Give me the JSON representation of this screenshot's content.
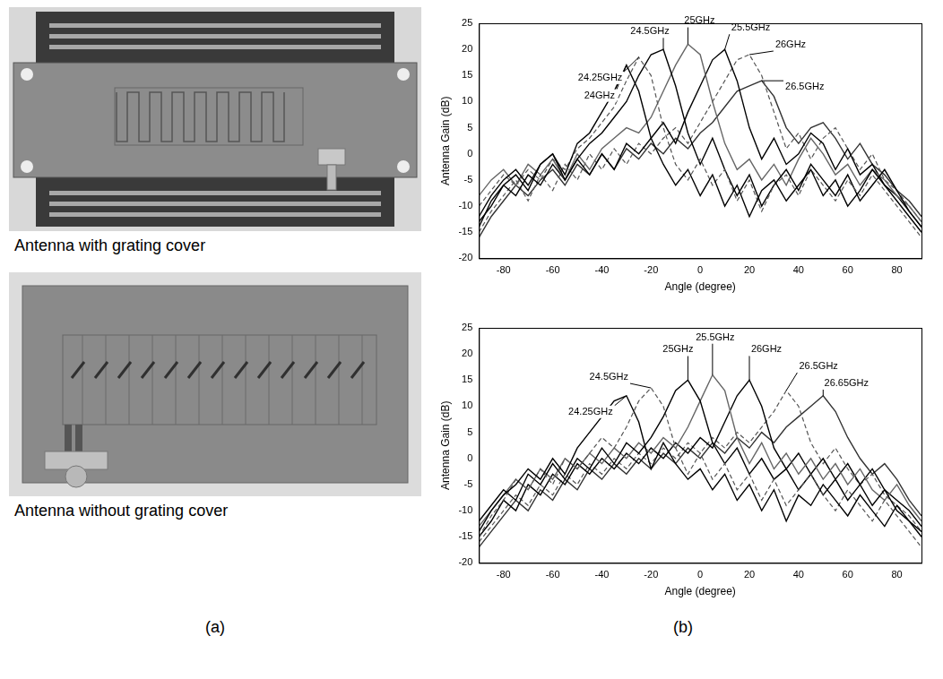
{
  "chart_data": [
    {
      "type": "line",
      "x_label": "Angle (degree)",
      "y_label": "Antenna Gain (dB)",
      "x": [
        -90,
        -85,
        -80,
        -75,
        -70,
        -65,
        -60,
        -55,
        -50,
        -45,
        -40,
        -35,
        -30,
        -25,
        -20,
        -15,
        -10,
        -5,
        0,
        5,
        10,
        15,
        20,
        25,
        30,
        35,
        40,
        45,
        50,
        55,
        60,
        65,
        70,
        75,
        80,
        85,
        90
      ],
      "xlim": [
        -90,
        90
      ],
      "xticks": [
        -80,
        -60,
        -40,
        -20,
        0,
        20,
        40,
        60,
        80
      ],
      "ylim": [
        -20,
        25
      ],
      "yticks": [
        -20,
        -15,
        -10,
        -5,
        0,
        5,
        10,
        15,
        20,
        25
      ],
      "grid": false,
      "series": [
        {
          "name": "24GHz",
          "color": "#000000",
          "line_style": "solid",
          "values": [
            -12,
            -8,
            -5,
            -3,
            -6,
            -2,
            0,
            -4,
            2,
            4,
            8,
            12,
            17,
            12,
            3,
            -2,
            -6,
            -3,
            -8,
            -4,
            -10,
            -6,
            -12,
            -7,
            -5,
            -9,
            -6,
            -3,
            -8,
            -5,
            -10,
            -7,
            -3,
            -6,
            -9,
            -12,
            -15
          ]
        },
        {
          "name": "24.25GHz",
          "color": "#555555",
          "line_style": "dashed",
          "values": [
            -10,
            -7,
            -4,
            -6,
            -3,
            -5,
            -1,
            -3,
            1,
            3,
            6,
            9,
            14,
            18.5,
            15,
            5,
            -2,
            -5,
            -1,
            -6,
            -3,
            -9,
            -5,
            -11,
            -6,
            -4,
            -8,
            -3,
            -6,
            -9,
            -5,
            -8,
            -4,
            -7,
            -10,
            -13,
            -16
          ]
        },
        {
          "name": "24.5GHz",
          "color": "#000000",
          "line_style": "solid",
          "values": [
            -14,
            -9,
            -6,
            -4,
            -7,
            -2,
            0,
            -5,
            -1,
            2,
            4,
            7,
            10,
            15,
            19,
            20,
            13,
            4,
            -2,
            3,
            -3,
            -8,
            -4,
            -10,
            -6,
            -3,
            -7,
            -2,
            -5,
            -8,
            -4,
            -9,
            -6,
            -3,
            -7,
            -11,
            -14
          ]
        },
        {
          "name": "25GHz",
          "color": "#666666",
          "line_style": "solid",
          "values": [
            -8,
            -5,
            -3,
            -6,
            -2,
            -4,
            -1,
            -5,
            0,
            -3,
            1,
            3,
            5,
            4,
            7,
            12,
            17,
            21,
            19,
            10,
            2,
            -3,
            -1,
            -5,
            -2,
            -6,
            -1,
            3,
            0,
            -4,
            -2,
            -6,
            -3,
            -5,
            -8,
            -10,
            -13
          ]
        },
        {
          "name": "25.5GHz",
          "color": "#000000",
          "line_style": "solid",
          "values": [
            -13,
            -10,
            -6,
            -8,
            -4,
            -6,
            -2,
            -5,
            -1,
            -4,
            0,
            -3,
            2,
            0,
            3,
            6,
            2,
            8,
            13,
            18,
            20,
            14,
            5,
            -1,
            3,
            -2,
            0,
            4,
            2,
            -3,
            1,
            -4,
            -2,
            -6,
            -8,
            -11,
            -14
          ]
        },
        {
          "name": "26GHz",
          "color": "#555555",
          "line_style": "dashed",
          "values": [
            -15,
            -11,
            -8,
            -5,
            -9,
            -4,
            -7,
            -2,
            -5,
            0,
            -3,
            1,
            -2,
            2,
            0,
            3,
            5,
            2,
            6,
            10,
            14,
            18,
            19,
            15,
            8,
            1,
            4,
            -1,
            3,
            5,
            1,
            -3,
            0,
            -5,
            -7,
            -10,
            -13
          ]
        },
        {
          "name": "26.5GHz",
          "color": "#333333",
          "line_style": "solid",
          "values": [
            -16,
            -12,
            -9,
            -6,
            -8,
            -5,
            -3,
            -6,
            -2,
            -4,
            0,
            -3,
            1,
            -1,
            2,
            0,
            3,
            1,
            4,
            6,
            9,
            12,
            13,
            14,
            11,
            5,
            2,
            5,
            6,
            3,
            -1,
            2,
            -2,
            -4,
            -7,
            -9,
            -12
          ]
        }
      ]
    },
    {
      "type": "line",
      "x_label": "Angle (degree)",
      "y_label": "Antenna Gain (dB)",
      "x": [
        -90,
        -85,
        -80,
        -75,
        -70,
        -65,
        -60,
        -55,
        -50,
        -45,
        -40,
        -35,
        -30,
        -25,
        -20,
        -15,
        -10,
        -5,
        0,
        5,
        10,
        15,
        20,
        25,
        30,
        35,
        40,
        45,
        50,
        55,
        60,
        65,
        70,
        75,
        80,
        85,
        90
      ],
      "xlim": [
        -90,
        90
      ],
      "xticks": [
        -80,
        -60,
        -40,
        -20,
        0,
        20,
        40,
        60,
        80
      ],
      "ylim": [
        -20,
        25
      ],
      "yticks": [
        -20,
        -15,
        -10,
        -5,
        0,
        5,
        10,
        15,
        20,
        25
      ],
      "grid": false,
      "series": [
        {
          "name": "24.25GHz",
          "color": "#000000",
          "line_style": "solid",
          "values": [
            -14,
            -10,
            -7,
            -5,
            -2,
            -4,
            0,
            -3,
            2,
            5,
            8,
            11,
            12,
            7,
            -2,
            3,
            -1,
            -4,
            -2,
            -6,
            -3,
            -8,
            -5,
            -10,
            -6,
            -12,
            -7,
            -9,
            -5,
            -8,
            -11,
            -7,
            -10,
            -13,
            -9,
            -12,
            -15
          ]
        },
        {
          "name": "24.5GHz",
          "color": "#555555",
          "line_style": "dashed",
          "values": [
            -15,
            -11,
            -8,
            -4,
            -6,
            -2,
            -5,
            0,
            -2,
            1,
            4,
            2,
            6,
            11,
            13.5,
            10,
            2,
            -3,
            1,
            -4,
            -1,
            -6,
            -3,
            -8,
            -4,
            -9,
            -6,
            -3,
            -7,
            -10,
            -6,
            -9,
            -12,
            -8,
            -11,
            -14,
            -17
          ]
        },
        {
          "name": "25GHz",
          "color": "#000000",
          "line_style": "solid",
          "values": [
            -12,
            -9,
            -6,
            -8,
            -3,
            -5,
            -1,
            -4,
            0,
            -2,
            2,
            -1,
            3,
            1,
            4,
            8,
            13,
            15,
            11,
            3,
            -1,
            2,
            -3,
            0,
            -4,
            -2,
            -6,
            -3,
            -7,
            -4,
            -8,
            -5,
            -9,
            -6,
            -10,
            -12,
            -14
          ]
        },
        {
          "name": "25.5GHz",
          "color": "#666666",
          "line_style": "solid",
          "values": [
            -13,
            -10,
            -7,
            -4,
            -6,
            -2,
            -4,
            0,
            -2,
            1,
            -1,
            2,
            0,
            3,
            1,
            4,
            2,
            6,
            11,
            16,
            13,
            4,
            -1,
            3,
            -2,
            1,
            -3,
            0,
            -4,
            -1,
            -5,
            -2,
            -6,
            -8,
            -5,
            -9,
            -12
          ]
        },
        {
          "name": "26GHz",
          "color": "#000000",
          "line_style": "solid",
          "values": [
            -15,
            -12,
            -8,
            -10,
            -5,
            -7,
            -3,
            -5,
            -1,
            -3,
            0,
            -2,
            1,
            -1,
            2,
            0,
            3,
            1,
            4,
            2,
            7,
            12,
            15,
            10,
            2,
            -2,
            1,
            -3,
            0,
            -4,
            -1,
            -5,
            -2,
            -6,
            -8,
            -10,
            -13
          ]
        },
        {
          "name": "26.5GHz",
          "color": "#555555",
          "line_style": "dashed",
          "values": [
            -16,
            -13,
            -10,
            -7,
            -9,
            -5,
            -7,
            -3,
            -5,
            -1,
            -3,
            0,
            -2,
            1,
            -1,
            2,
            0,
            3,
            1,
            4,
            2,
            5,
            3,
            6,
            9,
            13,
            10,
            3,
            -1,
            2,
            -2,
            -5,
            -3,
            -7,
            -9,
            -11,
            -14
          ]
        },
        {
          "name": "26.65GHz",
          "color": "#333333",
          "line_style": "solid",
          "values": [
            -17,
            -14,
            -11,
            -8,
            -10,
            -6,
            -8,
            -4,
            -6,
            -2,
            -4,
            -1,
            -3,
            0,
            -2,
            1,
            -1,
            2,
            0,
            3,
            1,
            4,
            2,
            5,
            3,
            6,
            8,
            10,
            12,
            9,
            4,
            0,
            -3,
            -1,
            -4,
            -8,
            -11
          ]
        }
      ]
    }
  ],
  "photos": [
    {
      "caption": "Antenna with grating cover"
    },
    {
      "caption": "Antenna without grating cover"
    }
  ],
  "panel_labels": [
    "(a)",
    "(b)"
  ]
}
